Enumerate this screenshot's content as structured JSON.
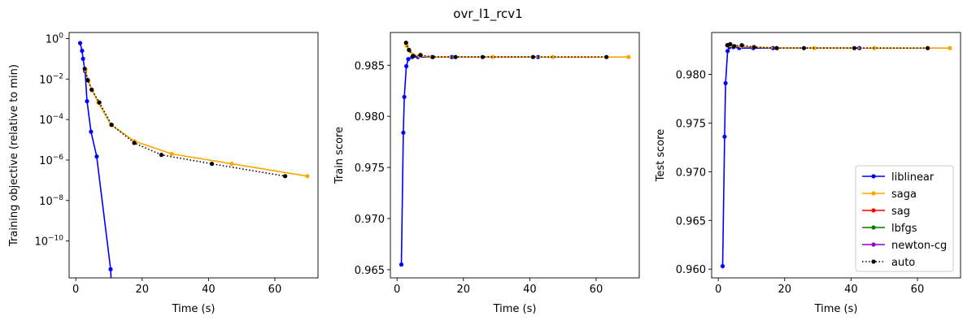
{
  "title": "ovr_l1_rcv1",
  "colors": {
    "liblinear": "#0000ff",
    "saga": "#ffa500",
    "sag": "#ff0000",
    "lbfgs": "#008000",
    "newton-cg": "#9400d3",
    "auto": "#000000"
  },
  "chart_data": [
    {
      "type": "line",
      "xlabel": "Time (s)",
      "ylabel": "Training objective (relative to min)",
      "yscale": "log",
      "xlim": [
        -2,
        73
      ],
      "ylim": [
        1.5e-12,
        2.0
      ],
      "xticks": [
        0,
        20,
        40,
        60
      ],
      "yticks": [
        1,
        0.01,
        0.0001,
        1e-06,
        1e-08,
        1e-10
      ],
      "ytick_labels": [
        "10^0",
        "10^-2",
        "10^-4",
        "10^-6",
        "10^-8",
        "10^-10"
      ],
      "series": [
        {
          "name": "liblinear",
          "style": "solid",
          "x": [
            1.3,
            1.9,
            2.2,
            2.8,
            3.4,
            4.6,
            6.3,
            10.5,
            11.0
          ],
          "y": [
            0.6,
            0.25,
            0.1,
            0.025,
            0.0008,
            2.5e-05,
            1.5e-06,
            4e-12,
            1e-13
          ]
        },
        {
          "name": "saga",
          "style": "solid",
          "x": [
            2.9,
            3.8,
            4.9,
            6.8,
            10.6,
            17.7,
            28.9,
            47.0,
            69.8
          ],
          "y": [
            0.028,
            0.008,
            0.0028,
            0.0007,
            5.5e-05,
            8.5e-06,
            2e-06,
            6.5e-07,
            1.6e-07
          ]
        },
        {
          "name": "auto",
          "style": "dotted",
          "x": [
            2.7,
            3.6,
            4.8,
            7.1,
            10.8,
            17.6,
            25.8,
            41.0,
            63.1
          ],
          "y": [
            0.032,
            0.009,
            0.003,
            0.0007,
            5.5e-05,
            7e-06,
            1.8e-06,
            6.5e-07,
            1.6e-07
          ]
        }
      ]
    },
    {
      "type": "line",
      "xlabel": "Time (s)",
      "ylabel": "Train score",
      "xlim": [
        -2,
        73
      ],
      "ylim": [
        0.9642,
        0.9882
      ],
      "xticks": [
        0,
        20,
        40,
        60
      ],
      "yticks": [
        0.965,
        0.97,
        0.975,
        0.98,
        0.985
      ],
      "ytick_labels": [
        "0.965",
        "0.970",
        "0.975",
        "0.980",
        "0.985"
      ],
      "series": [
        {
          "name": "liblinear",
          "style": "solid",
          "x": [
            1.3,
            1.9,
            2.2,
            2.8,
            3.4,
            4.6,
            6.3,
            10.5,
            16.5,
            42.5
          ],
          "y": [
            0.9655,
            0.9784,
            0.9819,
            0.9849,
            0.9856,
            0.9858,
            0.9858,
            0.9858,
            0.9858,
            0.9858
          ]
        },
        {
          "name": "saga",
          "style": "solid",
          "x": [
            2.9,
            3.8,
            4.9,
            6.8,
            10.6,
            17.7,
            28.9,
            47.0,
            69.8
          ],
          "y": [
            0.9869,
            0.9864,
            0.986,
            0.9859,
            0.9858,
            0.9858,
            0.9858,
            0.9858,
            0.9858
          ]
        },
        {
          "name": "auto",
          "style": "dotted",
          "x": [
            2.7,
            3.6,
            4.8,
            7.1,
            10.8,
            17.6,
            25.8,
            41.0,
            63.1
          ],
          "y": [
            0.9872,
            0.9865,
            0.9859,
            0.986,
            0.9858,
            0.9858,
            0.9858,
            0.9858,
            0.9858
          ]
        }
      ]
    },
    {
      "type": "line",
      "xlabel": "Time (s)",
      "ylabel": "Test score",
      "xlim": [
        -2,
        73
      ],
      "ylim": [
        0.9591,
        0.9843
      ],
      "xticks": [
        0,
        20,
        40,
        60
      ],
      "yticks": [
        0.96,
        0.965,
        0.97,
        0.975,
        0.98
      ],
      "ytick_labels": [
        "0.960",
        "0.965",
        "0.970",
        "0.975",
        "0.980"
      ],
      "series": [
        {
          "name": "liblinear",
          "style": "solid",
          "x": [
            1.3,
            1.9,
            2.2,
            2.8,
            3.4,
            4.6,
            6.3,
            10.5,
            16.5,
            42.5
          ],
          "y": [
            0.9603,
            0.9736,
            0.9791,
            0.9824,
            0.9828,
            0.9828,
            0.9827,
            0.9827,
            0.9827,
            0.9827
          ]
        },
        {
          "name": "saga",
          "style": "solid",
          "x": [
            2.9,
            3.8,
            4.9,
            6.8,
            10.6,
            17.7,
            28.9,
            47.0,
            69.8
          ],
          "y": [
            0.983,
            0.983,
            0.9829,
            0.9829,
            0.9828,
            0.9827,
            0.9827,
            0.9827,
            0.9827
          ]
        },
        {
          "name": "auto",
          "style": "dotted",
          "x": [
            2.7,
            3.6,
            4.8,
            7.1,
            10.8,
            17.6,
            25.8,
            41.0,
            63.1
          ],
          "y": [
            0.983,
            0.9831,
            0.9829,
            0.983,
            0.9828,
            0.9827,
            0.9827,
            0.9827,
            0.9827
          ]
        }
      ]
    }
  ],
  "legend": {
    "placement": "lower-right of third panel",
    "entries": [
      {
        "name": "liblinear",
        "style": "solid"
      },
      {
        "name": "saga",
        "style": "solid"
      },
      {
        "name": "sag",
        "style": "solid"
      },
      {
        "name": "lbfgs",
        "style": "solid"
      },
      {
        "name": "newton-cg",
        "style": "solid"
      },
      {
        "name": "auto",
        "style": "dotted"
      }
    ]
  }
}
